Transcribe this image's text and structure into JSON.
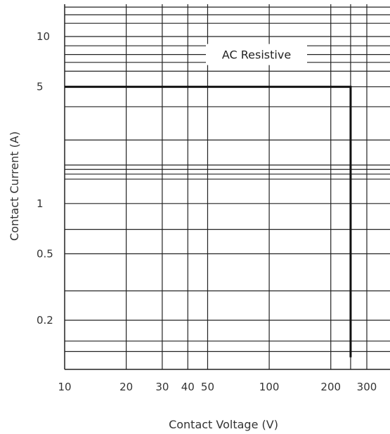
{
  "chart_data": {
    "type": "line",
    "xlabel": "Contact Voltage (V)",
    "ylabel": "Contact Current (A)",
    "x_scale": "log",
    "y_scale": "log",
    "xlim": [
      10,
      330
    ],
    "ylim": [
      0.12,
      16
    ],
    "x_ticks": [
      10,
      20,
      30,
      40,
      50,
      100,
      200,
      300
    ],
    "x_tick_labels": [
      "10",
      "20",
      "30",
      "40",
      "50",
      "100",
      "200",
      "300"
    ],
    "y_tick_values": [
      10,
      5,
      1,
      0.5,
      0.2
    ],
    "y_tick_labels": [
      "10",
      "5",
      "1",
      "0.5",
      "0.2"
    ],
    "x_grid": [
      20,
      30,
      40,
      50,
      100,
      200,
      250,
      300
    ],
    "y_grid": [
      15,
      13.5,
      12,
      10,
      8.8,
      7.8,
      7,
      6.2,
      5,
      3.8,
      2.4,
      1.7,
      1.6,
      1.5,
      1.4,
      1,
      0.7,
      0.5,
      0.3,
      0.2,
      0.15,
      0.13
    ],
    "grid": true,
    "series": [
      {
        "name": "AC Resistive",
        "x": [
          10,
          250,
          250
        ],
        "y": [
          5,
          5,
          0.12
        ]
      }
    ],
    "annotations": [
      {
        "text": "AC Resistive",
        "x": 50,
        "y": 7.8
      }
    ]
  },
  "colors": {
    "grid": "#222222",
    "series": "#111111",
    "text": "#333333"
  }
}
